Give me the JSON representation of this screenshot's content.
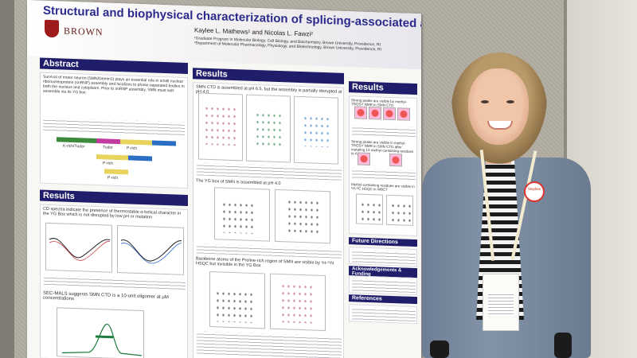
{
  "poster": {
    "title": "Structural and biophysical characterization of splicing-associated assemblies of the SMN protein",
    "institution": "BROWN",
    "authors": "Kaylee L. Mathews¹ and Nicolas L. Fawzi²",
    "affiliations": [
      "¹Graduate Program in Molecular Biology, Cell Biology, and Biochemistry, Brown University, Providence, RI",
      "²Department of Molecular Pharmacology, Physiology, and Biotechnology, Brown University, Providence, RI"
    ],
    "sections": {
      "abstract": "Abstract",
      "results_left": "Results",
      "results_middle": "Results",
      "results_right": "Results",
      "future": "Future Directions",
      "acknowledgements": "Acknowledgements & Funding",
      "references": "References"
    },
    "abstract_text": "Survival of motor neuron (SMN/Gemin1) plays an essential role in small nuclear ribonucleoprotein (snRNP) assembly and localizes to phase-separated bodies in both the nucleus and cytoplasm. Prior to snRNP assembly, SMN must self-assemble via its YG box.",
    "results_left_text": "CD spectra indicate the presence of thermostable α-helical character in the YG Box which is not disrupted by low pH or mutation",
    "sec_mals_text": "SEC-MALS suggests SMN CTD is a 10-unit oligomer at μM concentrations",
    "results_mid_text": "SMN CTD is assembled at pH 6.5, but the assembly is partially disrupted at pH 4.0",
    "results_mid_text2": "The YG box of SMN is assembled at pH 4.0",
    "results_mid_text3": "Backbone atoms of the Proline-rich region of SMN are visible by ¹H-¹⁵N HSQC but invisible in the YG Box",
    "results_right_text": "Strong peaks are visible by methyl-TROSY NMR in SMN CTD",
    "results_right_text2": "Strong peaks are visible in methyl-TROSY NMR in SMN CTD after mutating 13 methyl-containing residues to Ala",
    "results_right_text3": "Methyl-containing residues are visible in ¹H-¹³C HSQC in WBCT",
    "domain_labels": [
      "K-rich/Tudor",
      "Tudor",
      "P-rich",
      "P-rich",
      "P-rich"
    ],
    "domain_numbers": [
      "1",
      "92",
      "144",
      "151",
      "201",
      "250",
      "262",
      "294"
    ]
  },
  "name_badge": {
    "button_text": "Stephen"
  }
}
